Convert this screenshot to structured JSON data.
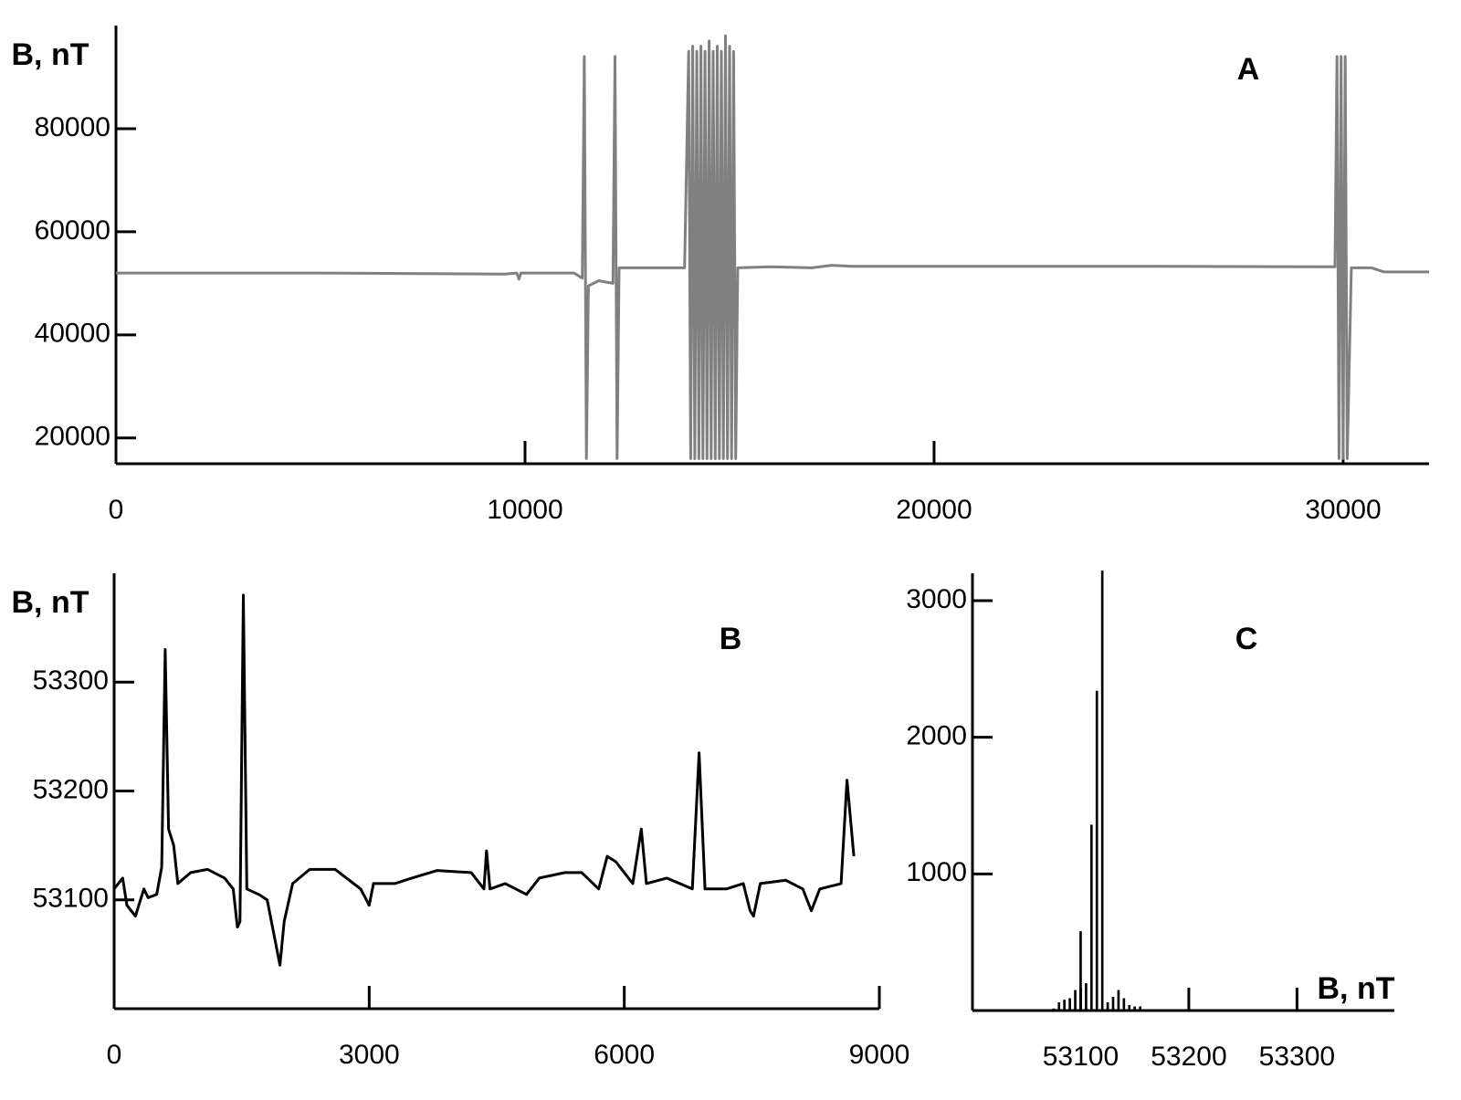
{
  "chart_data": [
    {
      "type": "line",
      "annotation": "A",
      "ylabel": "B, nT",
      "color": "#808080",
      "x": [
        0,
        5000,
        9500,
        9800,
        9850,
        9900,
        11200,
        11400,
        11450,
        11500,
        11550,
        11800,
        12150,
        12200,
        12250,
        12300,
        13900,
        14000,
        14050,
        14100,
        14150,
        14200,
        14250,
        14300,
        14350,
        14400,
        14450,
        14500,
        14550,
        14600,
        14650,
        14700,
        14750,
        14800,
        14850,
        14900,
        14950,
        15000,
        15050,
        15100,
        15150,
        15200,
        16000,
        17000,
        17500,
        18000,
        25000,
        29800,
        29850,
        29900,
        29950,
        30000,
        30050,
        30100,
        30200,
        30700,
        31000,
        32100
      ],
      "values": [
        52000,
        52000,
        51800,
        52000,
        50800,
        52000,
        52000,
        51000,
        94000,
        16000,
        49500,
        50500,
        50000,
        94000,
        16000,
        53000,
        53000,
        95000,
        16000,
        96000,
        16000,
        95000,
        16000,
        96000,
        16000,
        95000,
        16000,
        97000,
        16000,
        95000,
        16000,
        96000,
        16000,
        95000,
        16000,
        98000,
        16000,
        96000,
        16000,
        95000,
        16000,
        53000,
        53200,
        53000,
        53500,
        53300,
        53300,
        53200,
        94000,
        16000,
        94000,
        16000,
        94000,
        16000,
        53000,
        53000,
        52200,
        52200
      ],
      "xlim": [
        0,
        32100
      ],
      "ylim": [
        15000,
        100000
      ],
      "xticks": [
        0,
        10000,
        20000,
        30000
      ],
      "yticks": [
        20000,
        40000,
        60000,
        80000
      ]
    },
    {
      "type": "line",
      "annotation": "B",
      "ylabel": "B, nT",
      "color": "#000000",
      "x": [
        0,
        100,
        150,
        250,
        350,
        400,
        500,
        560,
        600,
        640,
        700,
        750,
        900,
        1100,
        1300,
        1400,
        1450,
        1480,
        1520,
        1560,
        1700,
        1800,
        1950,
        2000,
        2100,
        2300,
        2600,
        2900,
        3000,
        3050,
        3300,
        3500,
        3800,
        4200,
        4350,
        4380,
        4420,
        4600,
        4850,
        5000,
        5300,
        5500,
        5700,
        5800,
        5900,
        6100,
        6200,
        6260,
        6500,
        6800,
        6880,
        6950,
        7200,
        7400,
        7480,
        7520,
        7600,
        7900,
        8100,
        8200,
        8300,
        8550,
        8620,
        8700
      ],
      "values": [
        53110,
        53120,
        53095,
        53085,
        53110,
        53102,
        53105,
        53130,
        53330,
        53165,
        53150,
        53115,
        53125,
        53128,
        53120,
        53110,
        53075,
        53080,
        53380,
        53110,
        53105,
        53100,
        53040,
        53080,
        53115,
        53128,
        53128,
        53110,
        53095,
        53115,
        53115,
        53120,
        53127,
        53125,
        53110,
        53145,
        53110,
        53115,
        53105,
        53120,
        53125,
        53125,
        53110,
        53140,
        53135,
        53115,
        53165,
        53115,
        53120,
        53110,
        53235,
        53110,
        53110,
        53115,
        53090,
        53085,
        53115,
        53118,
        53110,
        53090,
        53110,
        53115,
        53210,
        53140
      ],
      "xlim": [
        0,
        9000
      ],
      "ylim": [
        53000,
        53400
      ],
      "xticks": [
        0,
        3000,
        6000,
        9000
      ],
      "yticks": [
        53100,
        53200,
        53300
      ]
    },
    {
      "type": "histogram",
      "annotation": "C",
      "xlabel": "B, nT",
      "color": "#000000",
      "bins": [
        53072.5,
        53077.5,
        53082.5,
        53087.5,
        53092.5,
        53097.5,
        53102.5,
        53107.5,
        53112.5,
        53117.5,
        53122.5,
        53127.5,
        53132.5,
        53137.5,
        53142.5,
        53147.5,
        53152.5,
        53157.5,
        53162.5,
        53167.5
      ],
      "values": [
        15,
        60,
        80,
        90,
        150,
        580,
        200,
        1360,
        2340,
        3220,
        60,
        100,
        150,
        90,
        40,
        30,
        30,
        10,
        5
      ],
      "xlim": [
        53000,
        53390
      ],
      "ylim": [
        0,
        3200
      ],
      "xticks": [
        53100,
        53200,
        53300
      ],
      "yticks": [
        1000,
        2000,
        3000
      ]
    }
  ]
}
